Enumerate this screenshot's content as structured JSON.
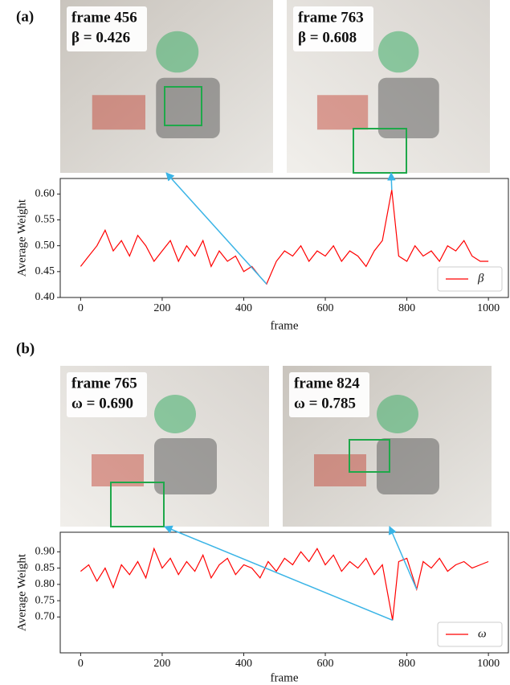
{
  "chart_data": [
    {
      "type": "line",
      "panel_label": "(a)",
      "xlabel": "frame",
      "ylabel": "Average Weight",
      "x": [
        0,
        20,
        40,
        60,
        80,
        100,
        120,
        140,
        160,
        180,
        200,
        220,
        240,
        260,
        280,
        300,
        320,
        340,
        360,
        380,
        400,
        420,
        440,
        456,
        480,
        500,
        520,
        540,
        560,
        580,
        600,
        620,
        640,
        660,
        680,
        700,
        720,
        740,
        763,
        780,
        800,
        820,
        840,
        860,
        880,
        900,
        920,
        940,
        960,
        980,
        1000
      ],
      "series": [
        {
          "name": "β",
          "color": "#ff0000",
          "values": [
            0.46,
            0.48,
            0.5,
            0.53,
            0.49,
            0.51,
            0.48,
            0.52,
            0.5,
            0.47,
            0.49,
            0.51,
            0.47,
            0.5,
            0.48,
            0.51,
            0.46,
            0.49,
            0.47,
            0.48,
            0.45,
            0.46,
            0.44,
            0.426,
            0.47,
            0.49,
            0.48,
            0.5,
            0.47,
            0.49,
            0.48,
            0.5,
            0.47,
            0.49,
            0.48,
            0.46,
            0.49,
            0.51,
            0.608,
            0.48,
            0.47,
            0.5,
            0.48,
            0.49,
            0.47,
            0.5,
            0.49,
            0.51,
            0.48,
            0.47,
            0.47
          ]
        }
      ],
      "xlim": [
        -50,
        1049
      ],
      "xticks": [
        0,
        200,
        400,
        600,
        800,
        1000
      ],
      "ylim": [
        0.4,
        0.63
      ],
      "yticks": [
        {
          "value": 0.4,
          "label": "0.40"
        },
        {
          "value": 0.45,
          "label": "0.45"
        },
        {
          "value": 0.5,
          "label": "0.50"
        },
        {
          "value": 0.55,
          "label": "0.55"
        },
        {
          "value": 0.6,
          "label": "0.60"
        }
      ],
      "legend": "lower right",
      "annotations": [
        {
          "frame": "frame 456",
          "weight": "β = 0.426",
          "x": 456,
          "y": 0.426
        },
        {
          "frame": "frame 763",
          "weight": "β = 0.608",
          "x": 763,
          "y": 0.608
        }
      ]
    },
    {
      "type": "line",
      "panel_label": "(b)",
      "xlabel": "frame",
      "ylabel": "Average Weight",
      "x": [
        0,
        20,
        40,
        60,
        80,
        100,
        120,
        140,
        160,
        180,
        200,
        220,
        240,
        260,
        280,
        300,
        320,
        340,
        360,
        380,
        400,
        420,
        440,
        460,
        480,
        500,
        520,
        540,
        560,
        580,
        600,
        620,
        640,
        660,
        680,
        700,
        720,
        740,
        765,
        780,
        800,
        824,
        840,
        860,
        880,
        900,
        920,
        940,
        960,
        980,
        1000
      ],
      "series": [
        {
          "name": "ω",
          "color": "#ff0000",
          "values": [
            0.84,
            0.86,
            0.81,
            0.85,
            0.79,
            0.86,
            0.83,
            0.87,
            0.82,
            0.91,
            0.85,
            0.88,
            0.83,
            0.87,
            0.84,
            0.89,
            0.82,
            0.86,
            0.88,
            0.83,
            0.86,
            0.85,
            0.82,
            0.87,
            0.84,
            0.88,
            0.86,
            0.9,
            0.87,
            0.91,
            0.86,
            0.89,
            0.84,
            0.87,
            0.85,
            0.88,
            0.83,
            0.86,
            0.69,
            0.87,
            0.88,
            0.785,
            0.87,
            0.85,
            0.88,
            0.84,
            0.86,
            0.87,
            0.85,
            0.86,
            0.87
          ]
        }
      ],
      "xlim": [
        -50,
        1049
      ],
      "xticks": [
        0,
        200,
        400,
        600,
        800,
        1000
      ],
      "ylim": [
        0.59,
        0.96
      ],
      "yticks": [
        {
          "value": 0.7,
          "label": "0.70"
        },
        {
          "value": 0.75,
          "label": "0.75"
        },
        {
          "value": 0.8,
          "label": "0.80"
        },
        {
          "value": 0.85,
          "label": "0.85"
        },
        {
          "value": 0.9,
          "label": "0.90"
        }
      ],
      "legend": "lower right",
      "annotations": [
        {
          "frame": "frame 765",
          "weight": "ω = 0.690",
          "x": 765,
          "y": 0.69
        },
        {
          "frame": "frame 824",
          "weight": "ω = 0.785",
          "x": 824,
          "y": 0.785
        }
      ]
    }
  ]
}
